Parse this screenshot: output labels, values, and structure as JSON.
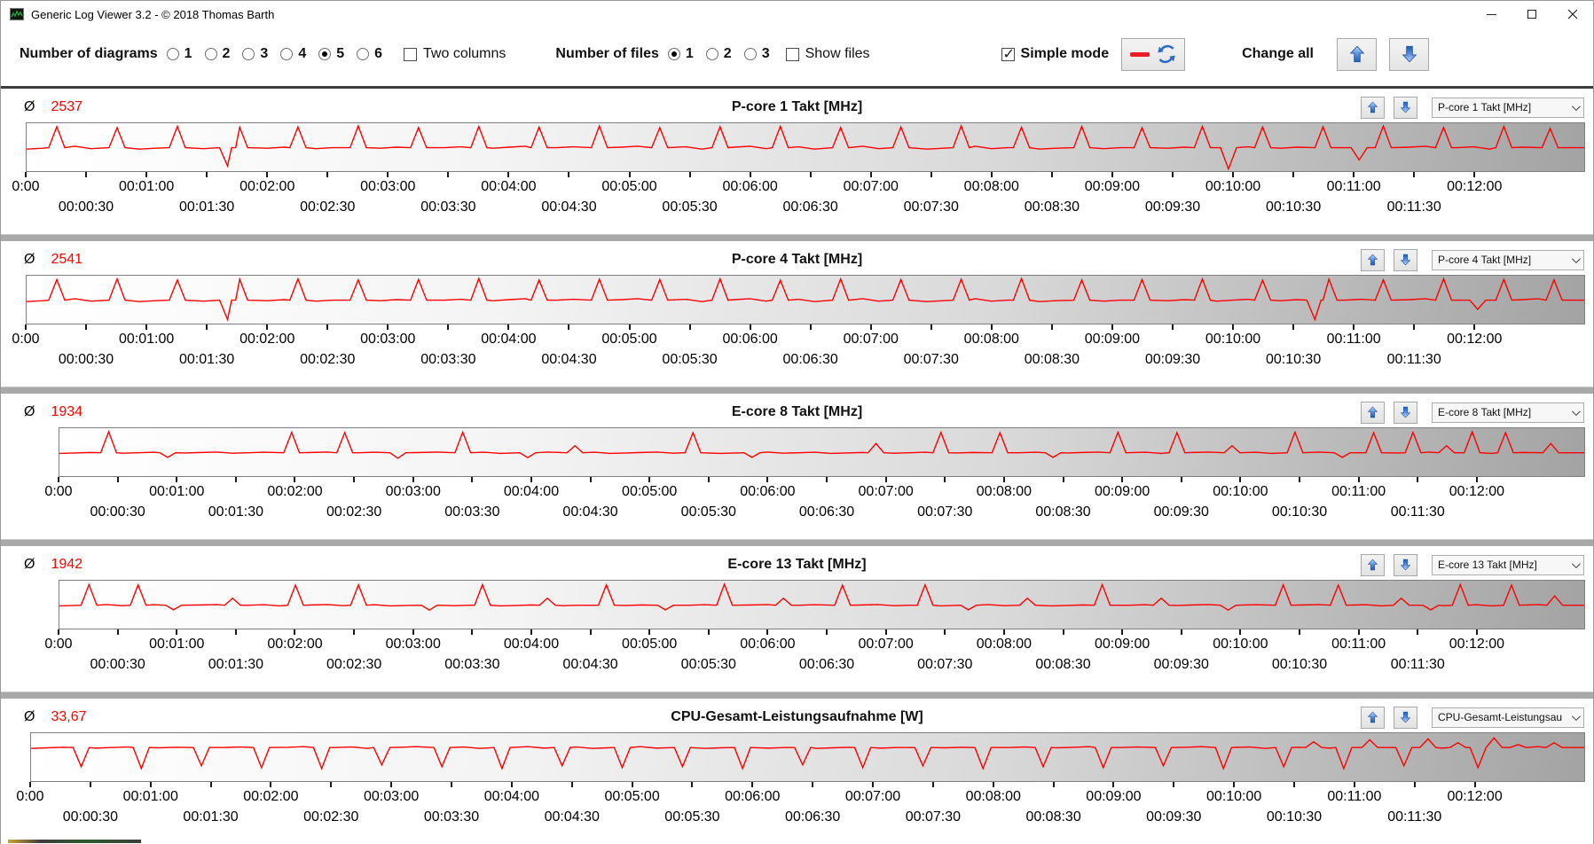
{
  "window": {
    "title": "Generic Log Viewer 3.2 - © 2018 Thomas Barth"
  },
  "toolbar": {
    "diagrams_label": "Number of diagrams",
    "diagrams": {
      "options": [
        "1",
        "2",
        "3",
        "4",
        "5",
        "6"
      ],
      "selected": "5"
    },
    "two_columns_label": "Two columns",
    "two_columns_checked": false,
    "files_label": "Number of files",
    "files": {
      "options": [
        "1",
        "2",
        "3"
      ],
      "selected": "1"
    },
    "show_files_label": "Show files",
    "show_files_checked": false,
    "simple_mode_label": "Simple mode",
    "simple_mode_checked": true,
    "change_all_label": "Change all"
  },
  "panels_common": {
    "average_symbol": "Ø"
  },
  "colors": {
    "line_red": "#ff0000",
    "average_red": "#ff0000",
    "arrow_blue": "#3c79d6",
    "divider_gray": "#a9a9a9"
  },
  "chart_data": {
    "type": "line",
    "x_axis": {
      "unit": "h:mm:ss elapsed time",
      "range_seconds": [
        0,
        775
      ],
      "tick_interval_seconds": 30,
      "labels_row1": [
        "0:00",
        "00:01:00",
        "00:02:00",
        "00:03:00",
        "00:04:00",
        "00:05:00",
        "00:06:00",
        "00:07:00",
        "00:08:00",
        "00:09:00",
        "00:10:00",
        "00:11:00",
        "00:12:00"
      ],
      "labels_row2": [
        "00:00:30",
        "00:01:30",
        "00:02:30",
        "00:03:30",
        "00:04:30",
        "00:05:30",
        "00:06:30",
        "00:07:30",
        "00:08:30",
        "00:09:30",
        "00:10:30",
        "00:11:30"
      ]
    },
    "panels": [
      {
        "title": "P-core 1 Takt [MHz]",
        "average": "2537",
        "dropdown": "P-core 1 Takt [MHz]",
        "y_tick": null,
        "ylim": [
          1300,
          3650
        ],
        "baseline": 2450,
        "noise": 70,
        "line_color": "#ff0000",
        "events": [
          [
            15,
            3480
          ],
          [
            45,
            3430
          ],
          [
            75,
            3500
          ],
          [
            100,
            1550
          ],
          [
            106,
            3450
          ],
          [
            135,
            3470
          ],
          [
            165,
            3520
          ],
          [
            195,
            3440
          ],
          [
            225,
            3490
          ],
          [
            255,
            3460
          ],
          [
            285,
            3510
          ],
          [
            315,
            3430
          ],
          [
            345,
            3480
          ],
          [
            375,
            3500
          ],
          [
            405,
            3440
          ],
          [
            435,
            3470
          ],
          [
            465,
            3520
          ],
          [
            495,
            3450
          ],
          [
            525,
            3490
          ],
          [
            555,
            3430
          ],
          [
            585,
            3500
          ],
          [
            598,
            1400
          ],
          [
            615,
            3460
          ],
          [
            645,
            3480
          ],
          [
            663,
            1850
          ],
          [
            675,
            3510
          ],
          [
            705,
            3440
          ],
          [
            735,
            3490
          ],
          [
            758,
            3400
          ]
        ]
      },
      {
        "title": "P-core 4 Takt [MHz]",
        "average": "2541",
        "dropdown": "P-core 4 Takt [MHz]",
        "y_tick": null,
        "ylim": [
          1300,
          3650
        ],
        "baseline": 2450,
        "noise": 70,
        "line_color": "#ff0000",
        "events": [
          [
            15,
            3460
          ],
          [
            45,
            3490
          ],
          [
            75,
            3440
          ],
          [
            100,
            1500
          ],
          [
            106,
            3480
          ],
          [
            135,
            3500
          ],
          [
            165,
            3450
          ],
          [
            195,
            3470
          ],
          [
            225,
            3520
          ],
          [
            255,
            3440
          ],
          [
            285,
            3480
          ],
          [
            315,
            3460
          ],
          [
            345,
            3500
          ],
          [
            375,
            3430
          ],
          [
            405,
            3490
          ],
          [
            435,
            3460
          ],
          [
            465,
            3480
          ],
          [
            495,
            3510
          ],
          [
            525,
            3440
          ],
          [
            555,
            3470
          ],
          [
            585,
            3490
          ],
          [
            615,
            3430
          ],
          [
            641,
            1500
          ],
          [
            648,
            3480
          ],
          [
            675,
            3450
          ],
          [
            705,
            3500
          ],
          [
            722,
            2000
          ],
          [
            735,
            3470
          ],
          [
            760,
            3450
          ]
        ]
      },
      {
        "title": "E-core 8 Takt [MHz]",
        "average": "1934",
        "dropdown": "E-core 8 Takt [MHz]",
        "y_tick": {
          "label": "2000",
          "value": 2000
        },
        "ylim": [
          1000,
          3050
        ],
        "baseline": 2000,
        "noise": 30,
        "line_color": "#ff0000",
        "events": [
          [
            25,
            2900
          ],
          [
            55,
            1800
          ],
          [
            118,
            2870
          ],
          [
            145,
            2860
          ],
          [
            172,
            1760
          ],
          [
            205,
            2880
          ],
          [
            238,
            1790
          ],
          [
            262,
            2300
          ],
          [
            322,
            2860
          ],
          [
            352,
            1800
          ],
          [
            415,
            2400
          ],
          [
            448,
            2870
          ],
          [
            478,
            2860
          ],
          [
            505,
            1800
          ],
          [
            538,
            2870
          ],
          [
            568,
            2860
          ],
          [
            596,
            2300
          ],
          [
            628,
            2880
          ],
          [
            652,
            1800
          ],
          [
            668,
            2860
          ],
          [
            688,
            2870
          ],
          [
            705,
            2300
          ],
          [
            718,
            2900
          ],
          [
            735,
            2860
          ],
          [
            758,
            2400
          ]
        ]
      },
      {
        "title": "E-core 13 Takt [MHz]",
        "average": "1942",
        "dropdown": "E-core 13 Takt [MHz]",
        "y_tick": {
          "label": "2000",
          "value": 2000
        },
        "ylim": [
          1000,
          3050
        ],
        "baseline": 2000,
        "noise": 30,
        "line_color": "#ff0000",
        "events": [
          [
            15,
            2880
          ],
          [
            40,
            2870
          ],
          [
            58,
            1800
          ],
          [
            88,
            2300
          ],
          [
            120,
            2860
          ],
          [
            152,
            2870
          ],
          [
            188,
            1790
          ],
          [
            215,
            2880
          ],
          [
            248,
            2300
          ],
          [
            278,
            2870
          ],
          [
            308,
            1800
          ],
          [
            338,
            2900
          ],
          [
            368,
            2300
          ],
          [
            398,
            2860
          ],
          [
            440,
            2870
          ],
          [
            462,
            1800
          ],
          [
            492,
            2300
          ],
          [
            530,
            2880
          ],
          [
            560,
            2300
          ],
          [
            594,
            1790
          ],
          [
            622,
            2870
          ],
          [
            650,
            2860
          ],
          [
            682,
            2300
          ],
          [
            697,
            1800
          ],
          [
            712,
            2880
          ],
          [
            738,
            2860
          ],
          [
            760,
            2400
          ]
        ]
      },
      {
        "title": "CPU-Gesamt-Leistungsaufnahme [W]",
        "average": "33,67",
        "dropdown": "CPU-Gesamt-Leistungsau",
        "y_tick": {
          "label": "50",
          "value": 50
        },
        "ylim": [
          0,
          50
        ],
        "baseline": 35,
        "noise": 0.9,
        "line_color": "#ff0000",
        "events": [
          [
            25,
            15
          ],
          [
            55,
            13
          ],
          [
            85,
            16
          ],
          [
            115,
            14
          ],
          [
            145,
            13
          ],
          [
            175,
            17
          ],
          [
            205,
            15
          ],
          [
            235,
            13
          ],
          [
            265,
            16
          ],
          [
            295,
            14
          ],
          [
            325,
            15
          ],
          [
            355,
            13
          ],
          [
            385,
            17
          ],
          [
            415,
            14
          ],
          [
            445,
            16
          ],
          [
            475,
            13
          ],
          [
            505,
            15
          ],
          [
            535,
            14
          ],
          [
            565,
            16
          ],
          [
            595,
            13
          ],
          [
            625,
            15
          ],
          [
            640,
            41
          ],
          [
            655,
            13
          ],
          [
            668,
            43
          ],
          [
            685,
            16
          ],
          [
            697,
            44
          ],
          [
            712,
            40
          ],
          [
            722,
            14
          ],
          [
            730,
            45
          ],
          [
            742,
            38
          ],
          [
            760,
            40
          ]
        ]
      }
    ]
  }
}
